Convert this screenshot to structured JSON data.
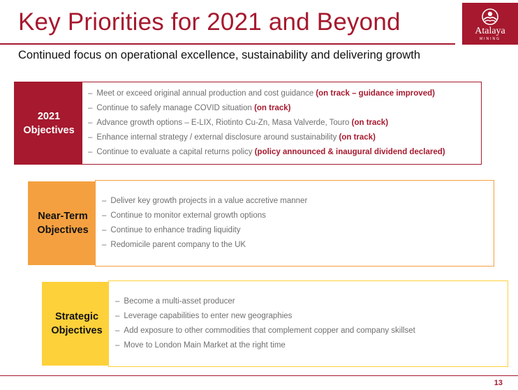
{
  "header": {
    "title": "Key Priorities for 2021 and Beyond",
    "subtitle": "Continued focus on operational excellence, sustainability and delivering growth",
    "logo": {
      "name": "Atalaya",
      "tagline": "MINING",
      "icon": "mountain-sun-icon"
    }
  },
  "sections": [
    {
      "label": [
        "2021",
        "Objectives"
      ],
      "items": [
        {
          "text": "Meet or exceed original annual production and cost guidance",
          "status": "(on track – guidance improved)"
        },
        {
          "text": "Continue to safely manage COVID situation",
          "status": "(on track)"
        },
        {
          "text": "Advance growth options – E-LIX, Riotinto Cu-Zn, Masa Valverde, Touro",
          "status": "(on track)"
        },
        {
          "text": "Enhance internal strategy / external disclosure around sustainability",
          "status": "(on track)"
        },
        {
          "text": "Continue to evaluate a capital returns policy",
          "status": "(policy announced & inaugural dividend declared)"
        }
      ]
    },
    {
      "label": [
        "Near-Term",
        "Objectives"
      ],
      "items": [
        {
          "text": "Deliver key growth projects in a value accretive manner"
        },
        {
          "text": "Continue to monitor external growth options"
        },
        {
          "text": "Continue to enhance trading liquidity"
        },
        {
          "text": "Redomicile parent company to the UK"
        }
      ]
    },
    {
      "label": [
        "Strategic",
        "Objectives"
      ],
      "items": [
        {
          "text": "Become a multi-asset producer"
        },
        {
          "text": "Leverage capabilities to enter new geographies"
        },
        {
          "text": "Add exposure to other commodities that complement copper and company skillset"
        },
        {
          "text": "Move to London Main Market at the right time"
        }
      ]
    }
  ],
  "colors": {
    "brand": "#a6192e",
    "orange": "#f5a040",
    "yellow": "#fdd13a"
  },
  "bullet": "–",
  "footer": {
    "page_number": "13"
  }
}
